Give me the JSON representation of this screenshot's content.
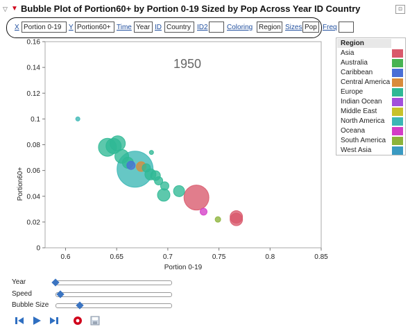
{
  "header": {
    "title": "Bubble Plot of Portion60+ by Portion 0-19 Sized by Pop Across Year ID Country"
  },
  "roles": {
    "x_link": "X",
    "x_value": "Portion 0-19",
    "y_link": "Y",
    "y_value": "Portion60+",
    "time_link": "Time",
    "time_value": "Year",
    "id_link": "ID",
    "id_value": "Country",
    "id2_link": "ID2",
    "id2_value": "",
    "coloring_link": "Coloring",
    "coloring_value": "Region",
    "sizes_link": "Sizes",
    "sizes_value": "Pop",
    "freq_link": "Freq",
    "freq_value": ""
  },
  "chart_data": {
    "type": "scatter",
    "title": "",
    "year_label": "1950",
    "xlabel": "Portion 0-19",
    "ylabel": "Portion60+",
    "xlim": [
      0.58,
      0.85
    ],
    "ylim": [
      0,
      0.16
    ],
    "xticks": [
      0.6,
      0.65,
      0.7,
      0.75,
      0.8,
      0.85
    ],
    "yticks": [
      0,
      0.02,
      0.04,
      0.06,
      0.08,
      0.1,
      0.12,
      0.14,
      0.16
    ],
    "bubbles": [
      {
        "x": 0.612,
        "y": 0.1,
        "size": 3,
        "region": "North America"
      },
      {
        "x": 0.641,
        "y": 0.078,
        "size": 13,
        "region": "Europe"
      },
      {
        "x": 0.647,
        "y": 0.079,
        "size": 11,
        "region": "Europe"
      },
      {
        "x": 0.651,
        "y": 0.081,
        "size": 11,
        "region": "Europe"
      },
      {
        "x": 0.655,
        "y": 0.071,
        "size": 10,
        "region": "Europe"
      },
      {
        "x": 0.661,
        "y": 0.066,
        "size": 8,
        "region": "Europe"
      },
      {
        "x": 0.664,
        "y": 0.064,
        "size": 6,
        "region": "Caribbean"
      },
      {
        "x": 0.668,
        "y": 0.061,
        "size": 26,
        "region": "North America"
      },
      {
        "x": 0.674,
        "y": 0.063,
        "size": 7,
        "region": "Central America"
      },
      {
        "x": 0.679,
        "y": 0.062,
        "size": 6,
        "region": "Europe"
      },
      {
        "x": 0.684,
        "y": 0.074,
        "size": 3,
        "region": "Europe"
      },
      {
        "x": 0.683,
        "y": 0.057,
        "size": 8,
        "region": "Europe"
      },
      {
        "x": 0.688,
        "y": 0.056,
        "size": 7,
        "region": "Europe"
      },
      {
        "x": 0.691,
        "y": 0.052,
        "size": 6,
        "region": "Europe"
      },
      {
        "x": 0.697,
        "y": 0.048,
        "size": 6,
        "region": "Europe"
      },
      {
        "x": 0.696,
        "y": 0.041,
        "size": 9,
        "region": "Europe"
      },
      {
        "x": 0.711,
        "y": 0.044,
        "size": 8,
        "region": "Europe"
      },
      {
        "x": 0.728,
        "y": 0.039,
        "size": 18,
        "region": "Asia"
      },
      {
        "x": 0.735,
        "y": 0.028,
        "size": 5,
        "region": "Oceana"
      },
      {
        "x": 0.749,
        "y": 0.022,
        "size": 4,
        "region": "South America"
      },
      {
        "x": 0.767,
        "y": 0.024,
        "size": 9,
        "region": "Asia"
      },
      {
        "x": 0.767,
        "y": 0.022,
        "size": 9,
        "region": "Asia"
      }
    ]
  },
  "legend": {
    "title": "Region",
    "items": [
      {
        "label": "Asia",
        "color": "#d9596b"
      },
      {
        "label": "Australia",
        "color": "#47b352"
      },
      {
        "label": "Caribbean",
        "color": "#4a6fd6"
      },
      {
        "label": "Central America",
        "color": "#d98b3a"
      },
      {
        "label": "Europe",
        "color": "#2fb895"
      },
      {
        "label": "Indian Ocean",
        "color": "#a24fdc"
      },
      {
        "label": "Middle East",
        "color": "#c7c22a"
      },
      {
        "label": "North America",
        "color": "#3bb7b5"
      },
      {
        "label": "Oceana",
        "color": "#d43cc6"
      },
      {
        "label": "South America",
        "color": "#8cb33a"
      },
      {
        "label": "West Asia",
        "color": "#3a9ac2"
      }
    ]
  },
  "controls": {
    "year_label": "Year",
    "year_value": 0.0,
    "speed_label": "Speed",
    "speed_value": 0.04,
    "bubble_size_label": "Bubble Size",
    "bubble_size_value": 0.21
  },
  "playback": {
    "buttons": [
      "step-back-icon",
      "play-icon",
      "step-forward-icon",
      "record-icon",
      "save-icon"
    ]
  }
}
